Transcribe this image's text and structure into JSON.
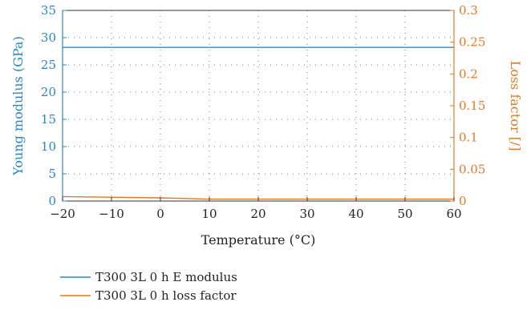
{
  "chart_data": {
    "type": "line",
    "xlabel": "Temperature (°C)",
    "ylabel": "Young modulus (GPa)",
    "y2label": "Loss factor [/]",
    "xlim": [
      -20,
      60
    ],
    "ylim": [
      0,
      35
    ],
    "y2lim": [
      0,
      0.3
    ],
    "x_ticks": [
      -20,
      -10,
      0,
      10,
      20,
      30,
      40,
      50,
      60
    ],
    "y_ticks": [
      0,
      5,
      10,
      15,
      20,
      25,
      30,
      35
    ],
    "y2_ticks": [
      "0",
      "0.05",
      "0.1",
      "0.15",
      "0.2",
      "0.25",
      "0.3"
    ],
    "grid": "dotted",
    "legend": "bottom",
    "series": [
      {
        "name": "T300 3L 0 h E modulus",
        "axis": "left",
        "color": "#2e86c1",
        "x": [
          -20,
          -10,
          0,
          10,
          20,
          30,
          40,
          50,
          60
        ],
        "y": [
          28.2,
          28.2,
          28.2,
          28.2,
          28.2,
          28.2,
          28.2,
          28.2,
          28.2
        ]
      },
      {
        "name": "T300 3L 0 h loss factor",
        "axis": "right",
        "color": "#e07b24",
        "x": [
          -20,
          -10,
          0,
          10,
          20,
          30,
          40,
          50,
          60
        ],
        "y": [
          0.007,
          0.006,
          0.005,
          0.003,
          0.003,
          0.003,
          0.003,
          0.003,
          0.003
        ]
      }
    ]
  }
}
